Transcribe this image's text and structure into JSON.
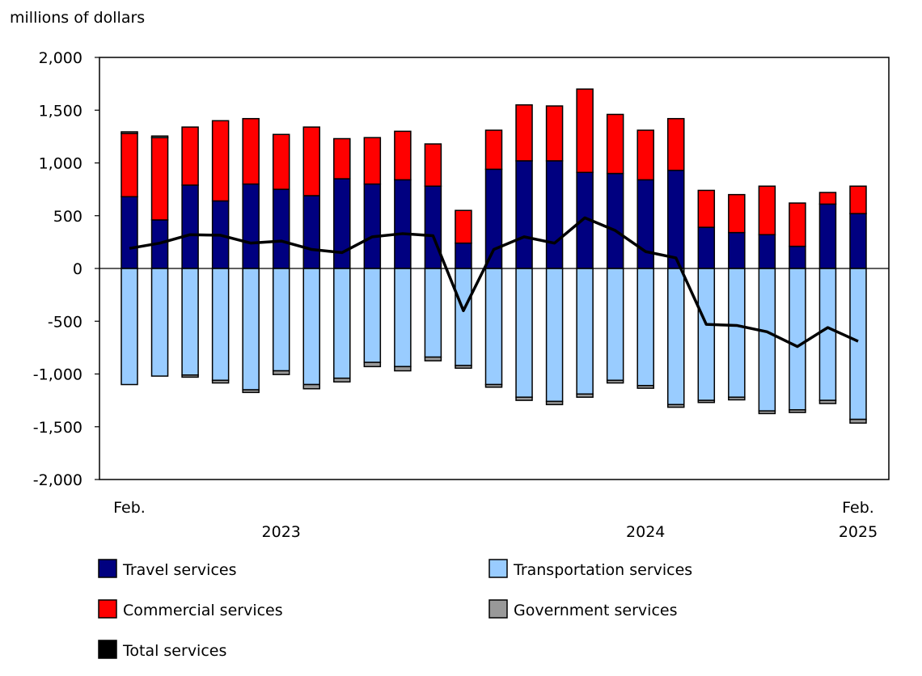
{
  "chart_data": {
    "type": "bar",
    "stacked": true,
    "ylabel": "millions of dollars",
    "ylim": [
      -2000,
      2000
    ],
    "yticks": [
      2000,
      1500,
      1000,
      500,
      0,
      -500,
      -1000,
      -1500,
      -2000
    ],
    "ytick_labels": [
      "2,000",
      "1,500",
      "1,000",
      "500",
      "0",
      "-500",
      "-1,000",
      "-1,500",
      "-2,000"
    ],
    "grid": false,
    "legend_placement": "bottom",
    "categories": [
      "2023-02",
      "2023-03",
      "2023-04",
      "2023-05",
      "2023-06",
      "2023-07",
      "2023-08",
      "2023-09",
      "2023-10",
      "2023-11",
      "2023-12",
      "2024-01",
      "2024-02",
      "2024-03",
      "2024-04",
      "2024-05",
      "2024-06",
      "2024-07",
      "2024-08",
      "2024-09",
      "2024-10",
      "2024-11",
      "2024-12",
      "2025-01",
      "2025-02"
    ],
    "x_labels": [
      {
        "category": "2023-02",
        "line1": "Feb.",
        "line2": ""
      },
      {
        "category": "2023-07",
        "line1": "",
        "line2": "2023"
      },
      {
        "category": "2024-07",
        "line1": "",
        "line2": "2024"
      },
      {
        "category": "2025-02",
        "line1": "Feb.",
        "line2": "2025"
      }
    ],
    "series": [
      {
        "name": "Travel services",
        "kind": "bar",
        "color": "#000080",
        "values": [
          680,
          460,
          790,
          640,
          800,
          750,
          690,
          850,
          800,
          840,
          780,
          240,
          940,
          1020,
          1020,
          910,
          900,
          840,
          930,
          390,
          340,
          320,
          210,
          610,
          520
        ]
      },
      {
        "name": "Commercial services",
        "kind": "bar",
        "color": "#ff0000",
        "values": [
          600,
          780,
          550,
          760,
          620,
          520,
          650,
          380,
          440,
          460,
          400,
          310,
          370,
          530,
          520,
          790,
          560,
          470,
          490,
          350,
          360,
          460,
          410,
          110,
          260
        ]
      },
      {
        "name": "Transportation services",
        "kind": "bar",
        "color": "#99ccff",
        "values": [
          -1100,
          -1020,
          -1010,
          -1060,
          -1150,
          -970,
          -1100,
          -1040,
          -890,
          -930,
          -840,
          -920,
          -1100,
          -1220,
          -1260,
          -1190,
          -1060,
          -1110,
          -1290,
          -1250,
          -1220,
          -1350,
          -1340,
          -1250,
          -1430
        ]
      },
      {
        "name": "Government services",
        "kind": "bar",
        "color": "#999999",
        "values": [
          15,
          15,
          -20,
          -25,
          -25,
          -35,
          -40,
          -35,
          -40,
          -40,
          -35,
          -25,
          -25,
          -30,
          -30,
          -30,
          -25,
          -25,
          -25,
          -20,
          -25,
          -25,
          -25,
          -30,
          -35
        ]
      },
      {
        "name": "Total services",
        "kind": "line",
        "color": "#000000",
        "values": [
          190,
          240,
          320,
          315,
          240,
          260,
          180,
          150,
          300,
          330,
          310,
          -400,
          180,
          300,
          240,
          480,
          360,
          160,
          100,
          -530,
          -540,
          -600,
          -740,
          -560,
          -690
        ]
      }
    ]
  }
}
